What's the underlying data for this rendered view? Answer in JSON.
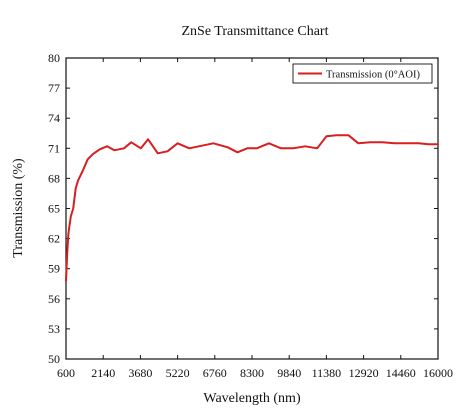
{
  "chart_data": {
    "type": "line",
    "title": "ZnSe  Transmittance  Chart",
    "xlabel": "Wavelength (nm)",
    "ylabel": "Transmission (%)",
    "xlim": [
      600,
      16000
    ],
    "ylim": [
      50,
      80
    ],
    "x_ticks": [
      600,
      2140,
      3680,
      5220,
      6760,
      8300,
      9840,
      11380,
      12920,
      14460,
      16000
    ],
    "y_ticks": [
      50,
      53,
      56,
      59,
      62,
      65,
      68,
      71,
      74,
      77,
      80
    ],
    "x_tick_labels": [
      "600",
      "2140",
      "3680",
      "5220",
      "6760",
      "8300",
      "9840",
      "11380",
      "12920",
      "14460",
      "16000"
    ],
    "y_tick_labels": [
      "50",
      "53",
      "56",
      "59",
      "62",
      "65",
      "68",
      "71",
      "74",
      "77",
      "80"
    ],
    "grid": false,
    "legend_position": "top-right",
    "series": [
      {
        "name": "Transmission (0°AOI)",
        "color": "#d81e1e",
        "x": [
          600,
          650,
          700,
          800,
          900,
          1000,
          1100,
          1300,
          1500,
          1700,
          2000,
          2300,
          2600,
          3000,
          3300,
          3700,
          4000,
          4400,
          4800,
          5220,
          5700,
          6100,
          6700,
          7300,
          7700,
          8100,
          8500,
          9000,
          9500,
          10000,
          10500,
          11000,
          11380,
          11800,
          12300,
          12700,
          13200,
          13700,
          14200,
          14700,
          15200,
          15600,
          16000
        ],
        "y": [
          57.8,
          60.5,
          62.5,
          64.2,
          65.0,
          67.0,
          67.8,
          68.8,
          69.9,
          70.4,
          70.9,
          71.2,
          70.8,
          71.0,
          71.6,
          71.0,
          71.9,
          70.5,
          70.7,
          71.5,
          71.0,
          71.2,
          71.5,
          71.1,
          70.6,
          71.0,
          71.0,
          71.5,
          71.0,
          71.0,
          71.2,
          71.0,
          72.2,
          72.3,
          72.3,
          71.5,
          71.6,
          71.6,
          71.5,
          71.5,
          71.5,
          71.4,
          71.4
        ]
      }
    ]
  }
}
